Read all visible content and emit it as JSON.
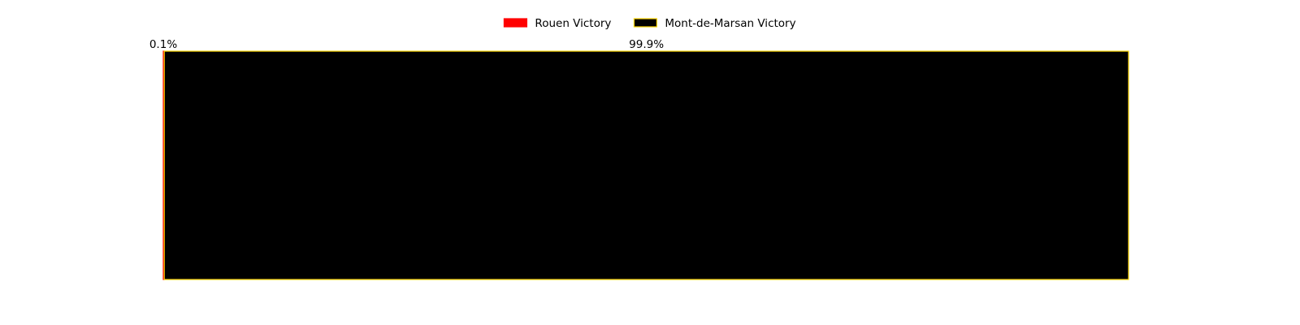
{
  "chart_data": {
    "type": "bar",
    "orientation": "horizontal",
    "stacked": true,
    "title": "",
    "xlabel": "",
    "ylabel": "",
    "xlim": [
      0,
      100
    ],
    "grid": false,
    "axes_visible": false,
    "legend_position": "top-center",
    "categories": [
      ""
    ],
    "series": [
      {
        "name": "Rouen Victory",
        "values": [
          0.1
        ],
        "label": "0.1%",
        "color": "#ff0000",
        "edgecolor": "#ff0000"
      },
      {
        "name": "Mont-de-Marsan Victory",
        "values": [
          99.9
        ],
        "label": "99.9%",
        "color": "#000000",
        "edgecolor": "#ffd700"
      }
    ]
  }
}
